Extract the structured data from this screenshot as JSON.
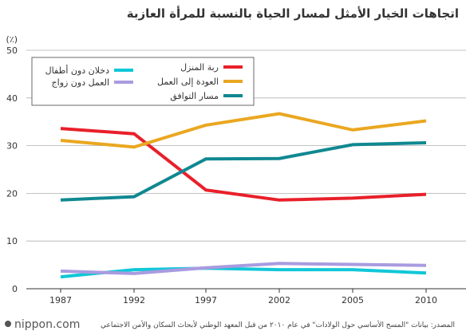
{
  "chart_data": {
    "type": "line",
    "title": "اتجاهات الخيار الأمثل لمسار الحياة بالنسبة للمرأة العازبة",
    "unit_label": "(٪)",
    "categories": [
      "1987",
      "1992",
      "1997",
      "2002",
      "2005",
      "2010"
    ],
    "y_ticks": [
      "0",
      "10",
      "20",
      "30",
      "40",
      "50"
    ],
    "ylim": [
      0,
      50
    ],
    "grid": true,
    "legend_position": "top-left",
    "series": [
      {
        "name": "ربة المنزل",
        "color": "#e8202a",
        "values": [
          33.6,
          32.5,
          20.7,
          18.6,
          19.0,
          19.8
        ]
      },
      {
        "name": "العودة إلى العمل",
        "color": "#eaa720",
        "values": [
          31.1,
          29.7,
          34.3,
          36.7,
          33.3,
          35.2
        ]
      },
      {
        "name": "مسار التوافق",
        "color": "#108891",
        "values": [
          18.6,
          19.3,
          27.2,
          27.3,
          30.2,
          30.6
        ]
      },
      {
        "name": "دخلان دون أطفال",
        "color": "#10c7d8",
        "values": [
          2.5,
          4.0,
          4.3,
          4.0,
          4.0,
          3.3
        ]
      },
      {
        "name": "العمل دون زواج",
        "color": "#a99be0",
        "values": [
          3.7,
          3.2,
          4.4,
          5.3,
          5.1,
          4.9
        ]
      }
    ]
  },
  "source": "المصدر: بيانات \"المسح الأساسي حول الولادات\" في عام ٢٠١٠ من قبل المعهد الوطني لأبحاث السكان والأمن الاجتماعي",
  "brand": "nippon.com"
}
